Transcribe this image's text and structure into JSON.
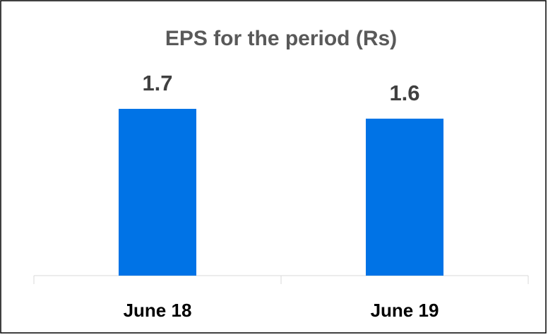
{
  "chart_data": {
    "type": "bar",
    "title": "EPS for the period (Rs)",
    "categories": [
      "June 18",
      "June 19"
    ],
    "values": [
      1.7,
      1.6
    ],
    "color": "#0073e6"
  }
}
